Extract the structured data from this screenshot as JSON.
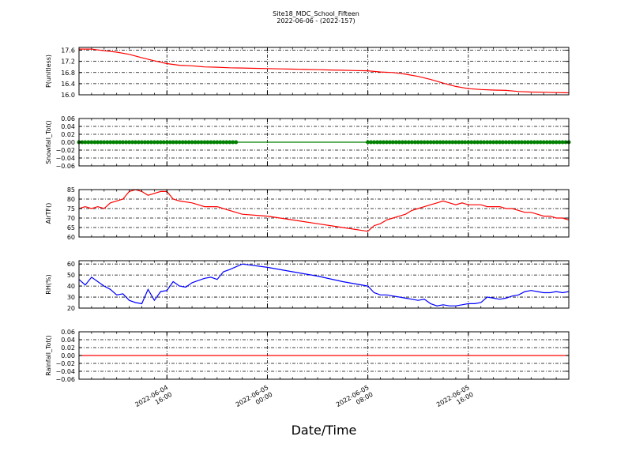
{
  "figure": {
    "title_line1": "Site18_MDC_School_Fifteen",
    "title_line2": "2022-06-06 - (2022-157)",
    "xlabel": "Date/Time"
  },
  "x_axis": {
    "ticks": [
      {
        "t": 16,
        "line1": "2022-06-04",
        "line2": "16:00"
      },
      {
        "t": 24,
        "line1": "2022-06-05",
        "line2": "00:00"
      },
      {
        "t": 32,
        "line1": "2022-06-05",
        "line2": "08:00"
      },
      {
        "t": 40,
        "line1": "2022-06-05",
        "line2": "16:00"
      }
    ]
  },
  "chart_data": [
    {
      "type": "line",
      "ylabel": "P(unitless)",
      "ylim": [
        16.0,
        17.7
      ],
      "yticks": [
        16.0,
        16.4,
        16.8,
        17.2,
        17.6
      ],
      "ytick_labels": [
        "16.0",
        "16.4",
        "16.8",
        "17.2",
        "17.6"
      ],
      "grid": true,
      "color": "#ff0000",
      "x": [
        9,
        10,
        11,
        12,
        13,
        14,
        15,
        16,
        17,
        18,
        19,
        20,
        21,
        22,
        23,
        24,
        25,
        26,
        27,
        28,
        29,
        30,
        31,
        32,
        33,
        34,
        35,
        36,
        37,
        38,
        39,
        40,
        41,
        42,
        43,
        44,
        45,
        46,
        47,
        48
      ],
      "y": [
        17.64,
        17.64,
        17.58,
        17.53,
        17.45,
        17.33,
        17.22,
        17.12,
        17.06,
        17.04,
        17.0,
        16.99,
        16.97,
        16.96,
        16.95,
        16.94,
        16.93,
        16.92,
        16.91,
        16.9,
        16.89,
        16.88,
        16.87,
        16.86,
        16.82,
        16.8,
        16.74,
        16.66,
        16.55,
        16.42,
        16.3,
        16.22,
        16.19,
        16.17,
        16.16,
        16.12,
        16.1,
        16.09,
        16.08,
        16.07
      ]
    },
    {
      "type": "line",
      "ylabel": "Snowfall_Tot()",
      "ylim": [
        -0.06,
        0.06
      ],
      "yticks": [
        -0.06,
        -0.04,
        -0.02,
        0.0,
        0.02,
        0.04,
        0.06
      ],
      "ytick_labels": [
        "−0.06",
        "−0.04",
        "−0.02",
        "0.00",
        "0.02",
        "0.04",
        "0.06"
      ],
      "grid": true,
      "color": "#008000",
      "x": [
        9,
        48
      ],
      "y": [
        0.0,
        0.0
      ],
      "markers": [
        {
          "from": 9,
          "to": 21.5,
          "step": 0.25,
          "value": 0.0
        },
        {
          "from": 32,
          "to": 48,
          "step": 0.25,
          "value": 0.0
        }
      ]
    },
    {
      "type": "line",
      "ylabel": "AirTF()",
      "ylim": [
        60,
        85
      ],
      "yticks": [
        60,
        65,
        70,
        75,
        80,
        85
      ],
      "ytick_labels": [
        "60",
        "65",
        "70",
        "75",
        "80",
        "85"
      ],
      "grid": true,
      "color": "#ff0000",
      "x": [
        9,
        9.5,
        10,
        10.5,
        11,
        11.5,
        12,
        12.5,
        13,
        13.5,
        14,
        14.5,
        15,
        15.5,
        16,
        16.5,
        17,
        18,
        19,
        20,
        20.5,
        21,
        22,
        24,
        26,
        28,
        30,
        32,
        32.5,
        33,
        33.5,
        34,
        34.5,
        35,
        35.5,
        36,
        36.5,
        37,
        37.5,
        38,
        38.5,
        39,
        39.5,
        40,
        40.5,
        41,
        41.5,
        42,
        42.5,
        43,
        43.5,
        44,
        44.5,
        45,
        45.5,
        46,
        46.5,
        47,
        47.5,
        48
      ],
      "y": [
        75,
        76,
        75,
        76,
        75,
        78,
        79,
        80,
        84,
        85,
        84,
        82,
        83,
        84,
        84,
        80,
        79,
        78,
        76,
        76,
        75,
        74,
        72,
        71,
        69,
        67,
        65,
        63,
        66,
        67,
        69,
        70,
        71,
        72,
        74,
        75,
        76,
        77,
        78,
        79,
        78,
        77,
        78,
        77,
        77,
        77,
        76,
        76,
        76,
        75,
        75,
        74,
        73,
        73,
        72,
        71,
        71,
        70,
        70,
        69
      ]
    },
    {
      "type": "line",
      "ylabel": "RH(%)",
      "ylim": [
        20,
        63
      ],
      "yticks": [
        20,
        30,
        40,
        50,
        60
      ],
      "ytick_labels": [
        "20",
        "30",
        "40",
        "50",
        "60"
      ],
      "grid": true,
      "color": "#0000ff",
      "x": [
        9,
        9.5,
        10,
        10.5,
        11,
        11.5,
        12,
        12.5,
        13,
        13.5,
        14,
        14.5,
        15,
        15.5,
        16,
        16.5,
        17,
        17.5,
        18,
        18.5,
        19,
        19.5,
        20,
        20.5,
        21,
        22,
        24,
        26,
        28,
        30,
        32,
        32.5,
        33,
        33.5,
        34,
        34.5,
        35,
        35.5,
        36,
        36.5,
        37,
        37.5,
        38,
        38.5,
        39,
        39.5,
        40,
        40.5,
        41,
        41.5,
        42,
        42.5,
        43,
        43.5,
        44,
        44.5,
        45,
        45.5,
        46,
        46.5,
        47,
        47.5,
        48
      ],
      "y": [
        46,
        41,
        48,
        44,
        40,
        37,
        32,
        33,
        27,
        25,
        24,
        37,
        27,
        35,
        36,
        44,
        40,
        39,
        43,
        45,
        47,
        48,
        46,
        53,
        55,
        60,
        57,
        53,
        49,
        44,
        40,
        34,
        32,
        32,
        31,
        30,
        29,
        28,
        27,
        28,
        24,
        22,
        23,
        22,
        22,
        23,
        24,
        24,
        25,
        30,
        29,
        28,
        29,
        31,
        32,
        35,
        36,
        35,
        34,
        34,
        35,
        34,
        35
      ]
    },
    {
      "type": "line",
      "ylabel": "Rainfall_Tot()",
      "ylim": [
        -0.06,
        0.06
      ],
      "yticks": [
        -0.06,
        -0.04,
        -0.02,
        0.0,
        0.02,
        0.04,
        0.06
      ],
      "ytick_labels": [
        "−0.06",
        "−0.04",
        "−0.02",
        "0.00",
        "0.02",
        "0.04",
        "0.06"
      ],
      "grid": true,
      "color": "#ff0000",
      "x": [
        9,
        48
      ],
      "y": [
        0.0,
        0.0
      ]
    }
  ]
}
